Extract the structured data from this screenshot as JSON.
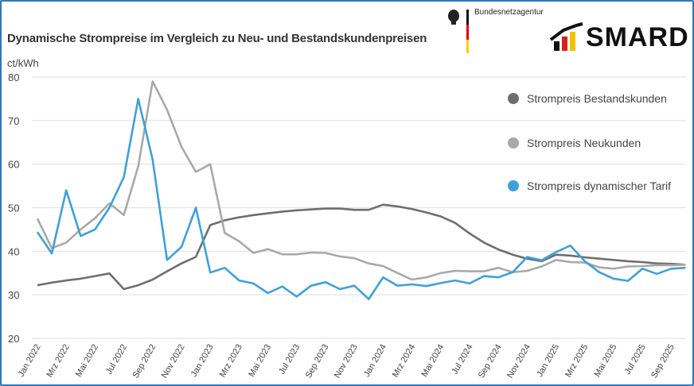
{
  "header": {
    "title": "Dynamische Strompreise im Vergleich zu Neu- und Bestandskundenpreisen",
    "agency": "Bundesnetzagentur",
    "brand": "SMARD"
  },
  "colors": {
    "bestand": "#6e6e6e",
    "neu": "#a9a9a9",
    "dynamisch": "#3fa0db",
    "frame": "#2e78b7"
  },
  "chart_data": {
    "type": "line",
    "title": "Dynamische Strompreise im Vergleich zu Neu- und Bestandskundenpreisen",
    "ylabel": "ct/kWh",
    "ylim": [
      20,
      80
    ],
    "yticks": [
      20,
      30,
      40,
      50,
      60,
      70,
      80
    ],
    "grid": true,
    "legend": "right",
    "x": [
      "Jan 2022",
      "Feb 2022",
      "Mrz 2022",
      "Apr 2022",
      "Mai 2022",
      "Jun 2022",
      "Jul 2022",
      "Aug 2022",
      "Sep 2022",
      "Okt 2022",
      "Nov 2022",
      "Dez 2022",
      "Jan 2023",
      "Feb 2023",
      "Mrz 2023",
      "Apr 2023",
      "Mai 2023",
      "Jun 2023",
      "Jul 2023",
      "Aug 2023",
      "Sep 2023",
      "Okt 2023",
      "Nov 2023",
      "Dez 2023",
      "Jan 2024",
      "Feb 2024",
      "Mrz 2024",
      "Apr 2024",
      "Mai 2024",
      "Jun 2024",
      "Jul 2024",
      "Aug 2024",
      "Sep 2024",
      "Okt 2024",
      "Nov 2024",
      "Dez 2024",
      "Jan 2025",
      "Feb 2025",
      "Mrz 2025",
      "Apr 2025",
      "Mai 2025",
      "Jun 2025",
      "Jul 2025",
      "Aug 2025",
      "Sep 2025",
      "Okt 2025"
    ],
    "xtick_labels": [
      "Jan 2022",
      "Mrz 2022",
      "Mai 2022",
      "Jul 2022",
      "Sep 2022",
      "Nov 2022",
      "Jan 2023",
      "Mrz 2023",
      "Mai 2023",
      "Jul 2023",
      "Sep 2023",
      "Nov 2023",
      "Jan 2024",
      "Mrz 2024",
      "Mai 2024",
      "Jul 2024",
      "Sep 2024",
      "Nov 2024",
      "Jan 2025",
      "Mrz 2025",
      "Mai 2025",
      "Jul 2025",
      "Sep 2025"
    ],
    "series": [
      {
        "name": "Strompreis Bestandskunden",
        "color": "#6e6e6e",
        "values": [
          32.2,
          32.8,
          33.3,
          33.7,
          34.3,
          34.9,
          31.3,
          32.2,
          33.5,
          35.4,
          37.2,
          38.7,
          46.0,
          47.1,
          47.8,
          48.3,
          48.7,
          49.1,
          49.4,
          49.6,
          49.8,
          49.8,
          49.5,
          49.5,
          50.7,
          50.3,
          49.7,
          48.9,
          48.0,
          46.5,
          44.1,
          42.0,
          40.4,
          39.2,
          38.3,
          37.7,
          39.2,
          39.0,
          38.6,
          38.3,
          38.0,
          37.7,
          37.5,
          37.2,
          37.1,
          36.9
        ]
      },
      {
        "name": "Strompreis Neukunden",
        "color": "#a9a9a9",
        "values": [
          47.5,
          40.7,
          42.0,
          45.0,
          47.6,
          51.0,
          48.3,
          59.5,
          79.0,
          72.5,
          64.0,
          58.2,
          60.0,
          44.2,
          42.3,
          39.6,
          40.5,
          39.3,
          39.3,
          39.7,
          39.6,
          38.8,
          38.4,
          37.2,
          36.6,
          35.0,
          33.5,
          34.0,
          35.0,
          35.5,
          35.4,
          35.4,
          36.2,
          35.2,
          35.5,
          36.5,
          38.0,
          37.5,
          37.4,
          36.3,
          36.0,
          36.5,
          36.6,
          36.8,
          36.8,
          36.9
        ]
      },
      {
        "name": "Strompreis dynamischer Tarif",
        "color": "#3fa0db",
        "values": [
          44.4,
          39.5,
          54.0,
          43.5,
          45.0,
          50.0,
          57.0,
          75.0,
          61.0,
          38.0,
          41.0,
          50.0,
          35.1,
          36.2,
          33.3,
          32.6,
          30.4,
          31.9,
          29.6,
          32.1,
          32.9,
          31.3,
          32.1,
          29.0,
          34.0,
          32.1,
          32.4,
          32.0,
          32.7,
          33.3,
          32.6,
          34.3,
          34.0,
          35.2,
          38.7,
          37.9,
          39.8,
          41.3,
          37.7,
          35.2,
          33.7,
          33.2,
          36.0,
          34.8,
          36.0,
          36.2
        ]
      }
    ]
  }
}
